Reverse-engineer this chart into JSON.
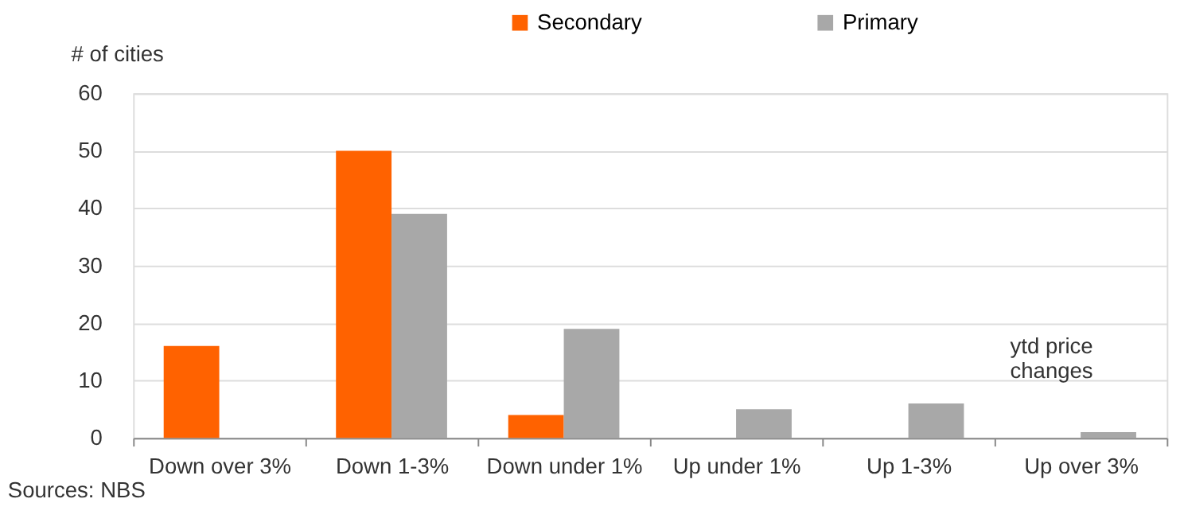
{
  "chart_data": {
    "type": "bar",
    "ylabel": "# of cities",
    "categories": [
      "Down over 3%",
      "Down 1-3%",
      "Down under 1%",
      "Up under 1%",
      "Up 1-3%",
      "Up over 3%"
    ],
    "series": [
      {
        "name": "Secondary",
        "color": "#ff6200",
        "values": [
          16,
          50,
          4,
          0,
          0,
          0
        ]
      },
      {
        "name": "Primary",
        "color": "#a8a8a8",
        "values": [
          0,
          39,
          19,
          5,
          6,
          1
        ]
      }
    ],
    "ylim": [
      0,
      60
    ],
    "yticks": [
      0,
      10,
      20,
      30,
      40,
      50,
      60
    ],
    "grid": "y",
    "legend": "top",
    "annotations": [
      "ytd price\nchanges",
      "Sources: NBS"
    ]
  }
}
